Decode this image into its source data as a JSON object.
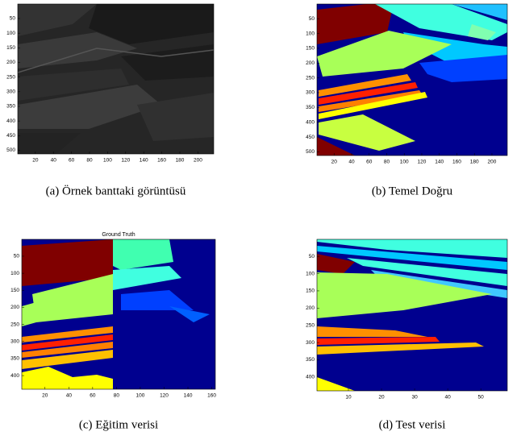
{
  "figure": {
    "panels": [
      {
        "caption": "(a) Örnek banttaki görüntüsü",
        "xlim": [
          0.5,
          217.5
        ],
        "ylim": [
          0.5,
          512.5
        ],
        "xticks": [
          20,
          40,
          60,
          80,
          100,
          120,
          140,
          160,
          180,
          200
        ],
        "yticks": [
          50,
          100,
          150,
          200,
          250,
          300,
          350,
          400,
          450,
          500
        ]
      },
      {
        "caption": "(b) Temel Doğru",
        "xlim": [
          0.5,
          217.5
        ],
        "ylim": [
          0.5,
          512.5
        ],
        "xticks": [
          20,
          40,
          60,
          80,
          100,
          120,
          140,
          160,
          180,
          200
        ],
        "yticks": [
          50,
          100,
          150,
          200,
          250,
          300,
          350,
          400,
          450,
          500
        ]
      },
      {
        "caption": "(c) Eğitim verisi",
        "title": "Ground Truth",
        "xlim": [
          0.5,
          163
        ],
        "ylim": [
          0.5,
          440
        ],
        "xticks": [
          20,
          40,
          60,
          80,
          100,
          120,
          140,
          160
        ],
        "yticks": [
          50,
          100,
          150,
          200,
          250,
          300,
          350,
          400
        ]
      },
      {
        "caption": "(d) Test verisi",
        "xlim": [
          0.5,
          58
        ],
        "ylim": [
          0.5,
          440
        ],
        "xticks": [
          10,
          20,
          30,
          40,
          50
        ],
        "yticks": [
          50,
          100,
          150,
          200,
          250,
          300,
          350,
          400
        ]
      }
    ]
  }
}
